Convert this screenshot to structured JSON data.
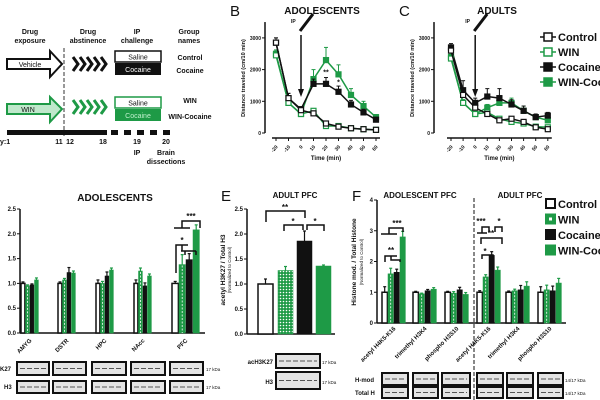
{
  "colors": {
    "black": "#111111",
    "green": "#1e9a46",
    "light_green": "#7fd39a"
  },
  "panel_a": {
    "headers": [
      "Drug",
      "exposure",
      "Drug",
      "abstinence",
      "IP",
      "challenge",
      "Group",
      "names"
    ],
    "vehicle": "Vehicle",
    "win": "WIN",
    "saline": "Saline",
    "cocaine": "Cocaine",
    "groups": [
      "Control",
      "Cocaine",
      "WIN",
      "WIN-Cocaine"
    ],
    "timeline": [
      "y:1",
      "11",
      "12",
      "18",
      "19",
      "20"
    ],
    "ip": "IP",
    "brain": "Brain",
    "dissections": "dissections"
  },
  "legend": [
    "Control",
    "WIN",
    "Cocaine",
    "WIN-Cocaine"
  ],
  "chart_data": [
    {
      "panel": "B",
      "type": "line",
      "title": "ADOLESCENTS",
      "xlabel": "Time (min)",
      "ylabel": "Distance traveled (cm/10 min)",
      "ylim": [
        0,
        3500
      ],
      "yticks": [
        "0",
        "1000",
        "2000",
        "3000"
      ],
      "x": [
        -20,
        -10,
        0,
        10,
        20,
        30,
        40,
        50,
        60
      ],
      "xticks": [
        "-20",
        "-10",
        "0",
        "10",
        "20",
        "30",
        "40",
        "50",
        "60"
      ],
      "marker_label": "IP",
      "ip_time": 0,
      "series": [
        {
          "name": "Control",
          "values": [
            2850,
            1100,
            720,
            620,
            300,
            200,
            150,
            120,
            100
          ],
          "err": [
            150,
            150,
            80,
            60,
            40,
            30,
            20,
            20,
            20
          ]
        },
        {
          "name": "WIN",
          "values": [
            2450,
            950,
            600,
            700,
            220,
            220,
            150,
            120,
            100
          ],
          "err": [
            120,
            100,
            60,
            70,
            40,
            40,
            20,
            20,
            20
          ]
        },
        {
          "name": "Cocaine",
          "values": [
            2850,
            1100,
            750,
            1550,
            1550,
            1300,
            900,
            650,
            420
          ],
          "err": [
            150,
            150,
            80,
            150,
            200,
            180,
            130,
            100,
            60
          ]
        },
        {
          "name": "WIN-Cocaine",
          "values": [
            2500,
            950,
            600,
            1700,
            2300,
            1850,
            1200,
            850,
            500
          ],
          "err": [
            120,
            100,
            60,
            300,
            400,
            300,
            200,
            150,
            80
          ]
        }
      ],
      "annotations": [
        {
          "x": 20,
          "y": 1850,
          "text": "**"
        },
        {
          "x": 30,
          "y": 1530,
          "text": "*"
        }
      ]
    },
    {
      "panel": "C",
      "type": "line",
      "title": "ADULTS",
      "xlabel": "Time (min)",
      "ylabel": "Distance traveled (cm/10 min)",
      "ylim": [
        0,
        3500
      ],
      "yticks": [
        "0",
        "1000",
        "2000",
        "3000"
      ],
      "x": [
        -20,
        -10,
        0,
        10,
        20,
        30,
        40,
        50,
        60
      ],
      "xticks": [
        "-20",
        "-10",
        "0",
        "10",
        "20",
        "30",
        "40",
        "50",
        "60"
      ],
      "marker_label": "IP",
      "ip_time": 0,
      "series": [
        {
          "name": "Control",
          "values": [
            2600,
            1200,
            800,
            600,
            400,
            450,
            350,
            180,
            120
          ],
          "err": [
            120,
            200,
            100,
            60,
            60,
            60,
            50,
            40,
            30
          ]
        },
        {
          "name": "WIN",
          "values": [
            2350,
            950,
            600,
            650,
            450,
            350,
            300,
            200,
            180
          ],
          "err": [
            120,
            100,
            60,
            60,
            60,
            50,
            40,
            40,
            30
          ]
        },
        {
          "name": "Cocaine",
          "values": [
            2700,
            1350,
            950,
            1150,
            1100,
            900,
            700,
            500,
            550
          ],
          "err": [
            120,
            300,
            150,
            250,
            300,
            150,
            150,
            100,
            100
          ]
        },
        {
          "name": "WIN-Cocaine",
          "values": [
            2400,
            950,
            600,
            800,
            950,
            950,
            700,
            500,
            400
          ],
          "err": [
            120,
            100,
            60,
            100,
            150,
            150,
            150,
            80,
            80
          ]
        }
      ]
    },
    {
      "panel": "D",
      "type": "bar",
      "title": "ADOLESCENTS",
      "ylim": [
        0,
        2.5
      ],
      "yticks": [
        "0.0",
        "0.5",
        "1.0",
        "1.5",
        "2.0",
        "2.5"
      ],
      "categories": [
        "AMYG",
        "DSTR",
        "HPC",
        "NAcc",
        "PFC"
      ],
      "series": [
        {
          "name": "Control",
          "values": [
            1.0,
            1.0,
            1.0,
            1.0,
            1.0
          ],
          "err": [
            0.03,
            0.03,
            0.07,
            0.07,
            0.04
          ]
        },
        {
          "name": "WIN",
          "values": [
            0.95,
            1.07,
            1.0,
            1.25,
            1.38
          ],
          "err": [
            0.02,
            0.03,
            0.04,
            0.06,
            0.2
          ]
        },
        {
          "name": "Cocaine",
          "values": [
            0.97,
            1.22,
            1.15,
            0.95,
            1.48
          ],
          "err": [
            0.02,
            0.1,
            0.08,
            0.06,
            0.12
          ]
        },
        {
          "name": "WIN-Cocaine",
          "values": [
            1.07,
            1.21,
            1.27,
            1.15,
            2.08
          ],
          "err": [
            0.04,
            0.04,
            0.04,
            0.04,
            0.1
          ]
        }
      ],
      "annotations": [
        {
          "text": "*"
        },
        {
          "text": "***"
        }
      ],
      "blots": [
        {
          "label": "K27",
          "kda": "17 kDa"
        },
        {
          "label": "H3",
          "kda": "17 kDa"
        }
      ]
    },
    {
      "panel": "E",
      "type": "bar",
      "title": "ADULT PFC",
      "ylabel": "acetyl H3K27 / Total H3",
      "ylabel2": "(Normalized to Control)",
      "ylim": [
        0,
        2.5
      ],
      "yticks": [
        "0.0",
        "0.5",
        "1.0",
        "1.5",
        "2.0",
        "2.5"
      ],
      "categories": [
        "Control",
        "WIN",
        "Cocaine",
        "WIN-Cocaine"
      ],
      "values": [
        1.0,
        1.27,
        1.86,
        1.36
      ],
      "err": [
        0.1,
        0.08,
        0.2,
        0.02
      ],
      "annotations": [
        {
          "text": "**"
        },
        {
          "text": "*"
        },
        {
          "text": "*"
        }
      ],
      "blots": [
        {
          "label": "acH3K27",
          "kda": "17 kDa"
        },
        {
          "label": "H3",
          "kda": "17 kDa"
        }
      ]
    },
    {
      "panel": "F",
      "type": "bar",
      "titles": [
        "ADOLESCENT PFC",
        "ADULT PFC"
      ],
      "ylabel": "Histone mod. / Total Histone",
      "ylabel2": "(Normalized to Control)",
      "ylim": [
        0,
        4
      ],
      "yticks": [
        "0",
        "1",
        "2",
        "3",
        "4"
      ],
      "categories": [
        "acetyl H4K5-K16",
        "trimethyl H3K4",
        "phospho H3S10",
        "acetyl H4K5-K16",
        "trimethyl H3K4",
        "phospho H3S10"
      ],
      "series": [
        {
          "name": "Control",
          "values": [
            1.0,
            1.0,
            1.0,
            1.0,
            1.0,
            1.0
          ],
          "err": [
            0.18,
            0.03,
            0.03,
            0.05,
            0.04,
            0.18
          ]
        },
        {
          "name": "WIN",
          "values": [
            1.6,
            0.95,
            0.97,
            1.5,
            1.05,
            1.08
          ],
          "err": [
            0.18,
            0.02,
            0.05,
            0.07,
            0.05,
            0.15
          ]
        },
        {
          "name": "Cocaine",
          "values": [
            1.65,
            1.05,
            1.08,
            2.2,
            1.08,
            1.05
          ],
          "err": [
            0.1,
            0.04,
            0.08,
            0.12,
            0.14,
            0.15
          ]
        },
        {
          "name": "WIN-Cocaine",
          "values": [
            2.8,
            1.1,
            0.93,
            1.72,
            1.2,
            1.3
          ],
          "err": [
            0.18,
            0.05,
            0.06,
            0.1,
            0.14,
            0.15
          ]
        }
      ],
      "annotations": [
        {
          "text": "***"
        },
        {
          "text": "**"
        },
        {
          "text": "***"
        },
        {
          "text": "*"
        },
        {
          "text": "**"
        },
        {
          "text": "*"
        }
      ],
      "blots": [
        {
          "label": "H-mod",
          "kda": "14/17 kDa"
        },
        {
          "label": "Total H",
          "kda": "14/17 kDa"
        }
      ]
    }
  ]
}
